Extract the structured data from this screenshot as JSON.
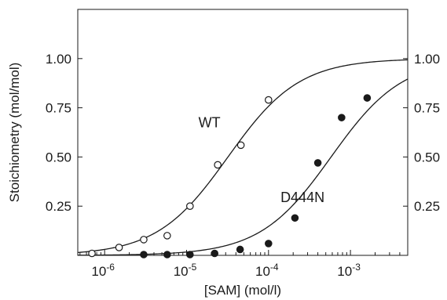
{
  "chart_data": {
    "type": "scatter",
    "title": "",
    "xlabel": "[SAM] (mol/l)",
    "ylabel": "Stoichiometry (mol/mol)",
    "xscale": "log",
    "xlim": [
      4.7e-07,
      0.005
    ],
    "ylim": [
      0,
      1.25
    ],
    "grid": false,
    "legend": "none",
    "right_axis_labels": true,
    "x_ticks": [
      {
        "value": 1e-06,
        "base": "10",
        "exp": "-6"
      },
      {
        "value": 1e-05,
        "base": "10",
        "exp": "-5"
      },
      {
        "value": 0.0001,
        "base": "10",
        "exp": "-4"
      },
      {
        "value": 0.001,
        "base": "10",
        "exp": "-3"
      }
    ],
    "y_ticks": [
      {
        "value": 0.25,
        "label": "0.25"
      },
      {
        "value": 0.5,
        "label": "0.50"
      },
      {
        "value": 0.75,
        "label": "0.75"
      },
      {
        "value": 1.0,
        "label": "1.00"
      }
    ],
    "series": [
      {
        "name": "WT",
        "marker": "open-circle",
        "label_at": [
          1.9e-05,
          0.65
        ],
        "fit": {
          "model": "hill",
          "kd": 3.2e-05,
          "n": 1,
          "top": 1.0
        },
        "points": [
          {
            "x": 7e-07,
            "y": 0.01
          },
          {
            "x": 1.5e-06,
            "y": 0.04
          },
          {
            "x": 3e-06,
            "y": 0.08
          },
          {
            "x": 5.8e-06,
            "y": 0.1
          },
          {
            "x": 1.1e-05,
            "y": 0.25
          },
          {
            "x": 2.4e-05,
            "y": 0.46
          },
          {
            "x": 4.6e-05,
            "y": 0.56
          },
          {
            "x": 0.0001,
            "y": 0.79
          }
        ]
      },
      {
        "name": "D444N",
        "marker": "filled-circle",
        "label_at": [
          0.00026,
          0.27
        ],
        "fit": {
          "model": "hill",
          "kd": 0.00058,
          "n": 1,
          "top": 1.0
        },
        "points": [
          {
            "x": 3e-06,
            "y": 0.0
          },
          {
            "x": 5.8e-06,
            "y": 0.0
          },
          {
            "x": 1.1e-05,
            "y": 0.0
          },
          {
            "x": 2.2e-05,
            "y": 0.01
          },
          {
            "x": 4.5e-05,
            "y": 0.03
          },
          {
            "x": 0.0001,
            "y": 0.06
          },
          {
            "x": 0.00021,
            "y": 0.19
          },
          {
            "x": 0.0004,
            "y": 0.47
          },
          {
            "x": 0.00078,
            "y": 0.7
          },
          {
            "x": 0.0016,
            "y": 0.8
          }
        ]
      }
    ],
    "colors": {
      "axis": "#1a1a1a",
      "marker": "#1a1a1a",
      "curve": "#1a1a1a"
    }
  }
}
